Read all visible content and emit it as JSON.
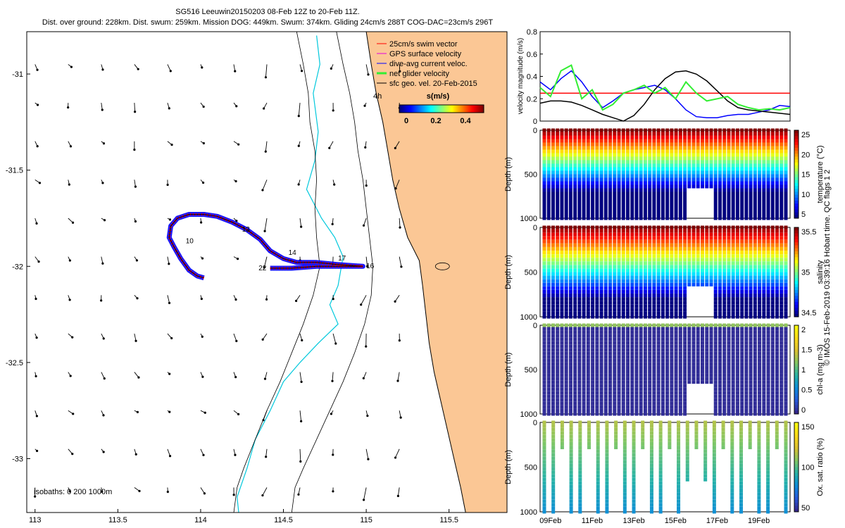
{
  "header": {
    "title": "SG516 Leeuwin20150203 08-Feb 12Z to 20-Feb 11Z.",
    "subtitle": "Dist. over ground: 228km. Dist. swum: 259km. Mission DOG: 449km. Swum: 374km. Gliding 24cm/s 288T COG-DAC=23cm/s 296T"
  },
  "side_stamp": "© IMOS 15-Feb-2019 03:39:16 Hobart time. QC flags 1 2",
  "colors": {
    "land": "#fbc795",
    "isobath": "#00c8dc",
    "swim": "#ff0000",
    "gps": "#e000e0",
    "dac": "#0000ff",
    "net": "#33ee33",
    "sfc": "#000000"
  },
  "chart_data": [
    {
      "type": "scatter",
      "name": "map",
      "xlim": [
        112.95,
        115.85
      ],
      "ylim": [
        -33.28,
        -30.78
      ],
      "x_ticks": [
        "113",
        "113.5",
        "114",
        "114.5",
        "115",
        "115.5"
      ],
      "y_ticks": [
        "-31",
        "-31.5",
        "-32",
        "-32.5",
        "-33"
      ],
      "legend": {
        "placement": "top-right",
        "items": [
          {
            "label": "25cm/s swim vector",
            "color": "#ff0000"
          },
          {
            "label": "GPS surface velocity",
            "color": "#e000e0"
          },
          {
            "label": "dive-avg current veloc.",
            "color": "#0000ff"
          },
          {
            "label": "net glider velocity",
            "color": "#33ee33"
          },
          {
            "label": "sfc geo. vel. 20-Feb-2015",
            "color": "#000000"
          }
        ],
        "extra_label": "4h",
        "colorbar_title": "s(m/s)",
        "colorbar_ticks": [
          "0",
          "0.2",
          "0.4"
        ]
      },
      "isobath_text": "isobaths: 0   200  1000m",
      "day_labels": [
        {
          "text": "13",
          "x": 114.25,
          "y": -31.82
        },
        {
          "text": "10",
          "x": 113.91,
          "y": -31.88
        },
        {
          "text": "14",
          "x": 114.53,
          "y": -31.94
        },
        {
          "text": "17",
          "x": 114.83,
          "y": -31.97
        },
        {
          "text": "16",
          "x": 115.0,
          "y": -32.01
        },
        {
          "text": "22",
          "x": 114.35,
          "y": -32.02
        }
      ],
      "track": [
        [
          114.02,
          -32.06
        ],
        [
          113.98,
          -32.05
        ],
        [
          113.93,
          -32.02
        ],
        [
          113.88,
          -31.96
        ],
        [
          113.84,
          -31.9
        ],
        [
          113.81,
          -31.85
        ],
        [
          113.82,
          -31.79
        ],
        [
          113.86,
          -31.75
        ],
        [
          113.93,
          -31.73
        ],
        [
          114.02,
          -31.73
        ],
        [
          114.1,
          -31.74
        ],
        [
          114.19,
          -31.77
        ],
        [
          114.28,
          -31.81
        ],
        [
          114.36,
          -31.86
        ],
        [
          114.42,
          -31.92
        ],
        [
          114.5,
          -31.96
        ],
        [
          114.58,
          -31.98
        ],
        [
          114.7,
          -31.98
        ],
        [
          114.82,
          -31.99
        ],
        [
          114.98,
          -32.0
        ],
        [
          114.85,
          -32.0
        ],
        [
          114.7,
          -32.0
        ],
        [
          114.55,
          -32.01
        ],
        [
          114.42,
          -32.01
        ]
      ],
      "coast": [
        [
          115.0,
          -30.78
        ],
        [
          115.03,
          -30.95
        ],
        [
          115.06,
          -31.1
        ],
        [
          115.1,
          -31.25
        ],
        [
          115.13,
          -31.4
        ],
        [
          115.16,
          -31.55
        ],
        [
          115.2,
          -31.7
        ],
        [
          115.25,
          -31.85
        ],
        [
          115.32,
          -31.97
        ],
        [
          115.34,
          -32.1
        ],
        [
          115.36,
          -32.25
        ],
        [
          115.38,
          -32.4
        ],
        [
          115.41,
          -32.55
        ],
        [
          115.45,
          -32.7
        ],
        [
          115.49,
          -32.85
        ],
        [
          115.53,
          -33.0
        ],
        [
          115.57,
          -33.15
        ],
        [
          115.6,
          -33.28
        ]
      ],
      "iso200": [
        [
          114.82,
          -30.78
        ],
        [
          114.86,
          -30.95
        ],
        [
          114.9,
          -31.1
        ],
        [
          114.93,
          -31.25
        ],
        [
          114.95,
          -31.4
        ],
        [
          114.98,
          -31.55
        ],
        [
          115.0,
          -31.7
        ],
        [
          115.02,
          -31.85
        ],
        [
          115.04,
          -32.0
        ],
        [
          115.03,
          -32.15
        ],
        [
          114.99,
          -32.3
        ],
        [
          114.93,
          -32.45
        ],
        [
          114.86,
          -32.6
        ],
        [
          114.78,
          -32.75
        ],
        [
          114.7,
          -32.9
        ],
        [
          114.62,
          -33.05
        ],
        [
          114.57,
          -33.15
        ],
        [
          114.55,
          -33.28
        ]
      ],
      "iso1000": [
        [
          114.58,
          -30.78
        ],
        [
          114.62,
          -30.95
        ],
        [
          114.65,
          -31.1
        ],
        [
          114.66,
          -31.25
        ],
        [
          114.69,
          -31.4
        ],
        [
          114.7,
          -31.55
        ],
        [
          114.69,
          -31.7
        ],
        [
          114.7,
          -31.85
        ],
        [
          114.72,
          -32.0
        ],
        [
          114.68,
          -32.15
        ],
        [
          114.62,
          -32.3
        ],
        [
          114.55,
          -32.45
        ],
        [
          114.48,
          -32.6
        ],
        [
          114.4,
          -32.75
        ],
        [
          114.33,
          -32.9
        ],
        [
          114.26,
          -33.05
        ],
        [
          114.22,
          -33.15
        ],
        [
          114.2,
          -33.28
        ]
      ],
      "iso0": [
        [
          114.7,
          -30.8
        ],
        [
          114.72,
          -30.95
        ],
        [
          114.68,
          -31.1
        ],
        [
          114.71,
          -31.3
        ],
        [
          114.69,
          -31.45
        ],
        [
          114.64,
          -31.6
        ],
        [
          114.73,
          -31.75
        ],
        [
          114.81,
          -31.85
        ],
        [
          114.86,
          -31.95
        ],
        [
          114.83,
          -32.1
        ],
        [
          114.78,
          -32.2
        ],
        [
          114.83,
          -32.3
        ],
        [
          114.71,
          -32.4
        ],
        [
          114.6,
          -32.5
        ],
        [
          114.5,
          -32.6
        ],
        [
          114.42,
          -32.75
        ],
        [
          114.33,
          -32.9
        ],
        [
          114.28,
          -33.05
        ],
        [
          114.22,
          -33.2
        ],
        [
          114.23,
          -33.28
        ]
      ]
    },
    {
      "type": "line",
      "name": "velocity",
      "ylabel": "velocity magnitude (m/s)",
      "xlim": [
        8.5,
        20.5
      ],
      "ylim": [
        0,
        0.8
      ],
      "y_ticks": [
        "0",
        "0.2",
        "0.4",
        "0.6",
        "0.8"
      ],
      "threshold": 0.25,
      "series": [
        {
          "color": "#0000ff",
          "x": [
            8.5,
            9.0,
            9.5,
            10.0,
            10.5,
            11.0,
            11.5,
            12.0,
            12.5,
            13.0,
            13.5,
            14.0,
            14.5,
            15.0,
            15.5,
            16.0,
            16.5,
            17.0,
            17.5,
            18.0,
            18.5,
            19.0,
            19.5,
            20.0,
            20.5
          ],
          "y": [
            0.35,
            0.28,
            0.38,
            0.45,
            0.35,
            0.22,
            0.12,
            0.18,
            0.25,
            0.28,
            0.3,
            0.32,
            0.28,
            0.2,
            0.1,
            0.04,
            0.03,
            0.03,
            0.05,
            0.06,
            0.06,
            0.08,
            0.1,
            0.14,
            0.13
          ]
        },
        {
          "color": "#000000",
          "x": [
            8.5,
            9.0,
            9.5,
            10.0,
            10.5,
            11.0,
            11.5,
            12.0,
            12.5,
            13.0,
            13.5,
            14.0,
            14.5,
            15.0,
            15.5,
            16.0,
            16.5,
            17.0,
            17.5,
            18.0,
            18.5,
            19.0,
            19.5,
            20.0,
            20.5
          ],
          "y": [
            0.16,
            0.18,
            0.18,
            0.17,
            0.14,
            0.1,
            0.06,
            0.03,
            0.0,
            0.05,
            0.15,
            0.28,
            0.38,
            0.44,
            0.45,
            0.42,
            0.36,
            0.27,
            0.18,
            0.12,
            0.1,
            0.09,
            0.08,
            0.07,
            0.06
          ]
        },
        {
          "color": "#33ee33",
          "x": [
            8.5,
            9.0,
            9.5,
            10.0,
            10.5,
            11.0,
            11.5,
            12.0,
            12.5,
            13.0,
            13.5,
            14.0,
            14.5,
            15.0,
            15.5,
            16.0,
            16.5,
            17.0,
            17.5,
            18.0,
            18.5,
            19.0,
            19.5,
            20.0,
            20.5
          ],
          "y": [
            0.3,
            0.22,
            0.45,
            0.5,
            0.2,
            0.28,
            0.1,
            0.15,
            0.25,
            0.28,
            0.32,
            0.25,
            0.3,
            0.2,
            0.35,
            0.25,
            0.18,
            0.2,
            0.22,
            0.15,
            0.12,
            0.1,
            0.11,
            0.1,
            0.12
          ]
        }
      ]
    },
    {
      "type": "heatmap",
      "name": "temperature",
      "ylabel": "Depth (m)",
      "cbar_label": "temperature (°C)",
      "clim": [
        3,
        25
      ],
      "cbar_ticks": [
        "25",
        "20",
        "15",
        "10",
        "5"
      ],
      "y_ticks": [
        "0",
        "500",
        "1000"
      ],
      "ylim": [
        0,
        1000
      ]
    },
    {
      "type": "heatmap",
      "name": "salinity",
      "ylabel": "Depth (m)",
      "cbar_label": "salinity",
      "clim": [
        34.3,
        35.9
      ],
      "cbar_ticks": [
        "35.5",
        "35",
        "34.5"
      ],
      "y_ticks": [
        "0",
        "500",
        "1000"
      ],
      "ylim": [
        0,
        1000
      ]
    },
    {
      "type": "heatmap",
      "name": "chl-a",
      "ylabel": "Depth (m)",
      "cbar_label": "chl-a (mg m-3)",
      "clim": [
        0,
        2
      ],
      "cbar_ticks": [
        "2",
        "1.5",
        "1",
        "0.5",
        "0"
      ],
      "y_ticks": [
        "0",
        "500",
        "1000"
      ],
      "ylim": [
        0,
        1000
      ]
    },
    {
      "type": "heatmap",
      "name": "oxygen",
      "ylabel": "Depth (m)",
      "cbar_label": "Ox. sat. ratio (%)",
      "clim": [
        20,
        175
      ],
      "cbar_ticks": [
        "150",
        "100",
        "50"
      ],
      "y_ticks": [
        "0",
        "500",
        "1000"
      ],
      "ylim": [
        0,
        1000
      ],
      "x_ticks": [
        "09Feb",
        "11Feb",
        "13Feb",
        "15Feb",
        "17Feb",
        "19Feb"
      ]
    }
  ]
}
